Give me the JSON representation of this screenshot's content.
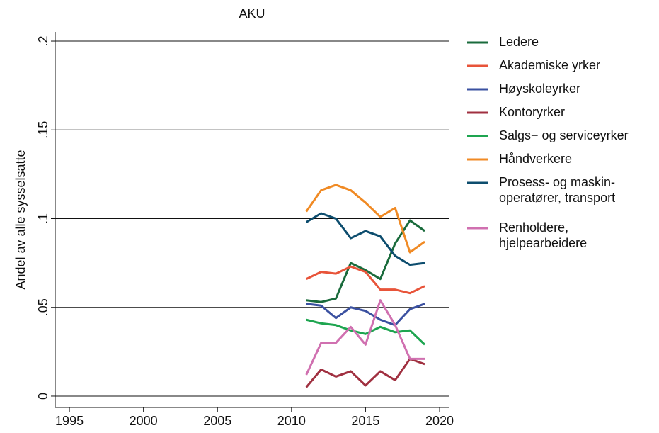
{
  "chart_data": {
    "type": "line",
    "title": "AKU",
    "y_label": "Andel av alle sysselsatte",
    "x": [
      2011,
      2012,
      2013,
      2014,
      2015,
      2016,
      2017,
      2018,
      2019
    ],
    "xlim": [
      1994.04,
      2020.67
    ],
    "xticks": [
      1995,
      2000,
      2005,
      2010,
      2015,
      2020
    ],
    "ylim": [
      -0.0064,
      0.2052
    ],
    "yticks": [
      0,
      {
        "value": 0.05,
        "label": ".05"
      },
      {
        "value": 0.1,
        "label": ".1"
      },
      {
        "value": 0.15,
        "label": ".15"
      },
      {
        "value": 0.2,
        "label": ".2"
      }
    ],
    "grid": true,
    "legend": "right",
    "series": [
      {
        "name": "Ledere",
        "color": "#1a6b3c",
        "values": [
          0.054,
          0.053,
          0.055,
          0.075,
          0.071,
          0.066,
          0.086,
          0.099,
          0.093
        ]
      },
      {
        "name": "Akademiske yrker",
        "color": "#e8543a",
        "values": [
          0.066,
          0.07,
          0.069,
          0.073,
          0.07,
          0.06,
          0.06,
          0.058,
          0.062
        ]
      },
      {
        "name": "Høyskoleyrker",
        "color": "#3a50a0",
        "values": [
          0.052,
          0.051,
          0.044,
          0.05,
          0.048,
          0.043,
          0.04,
          0.049,
          0.052
        ]
      },
      {
        "name": "Kontoryrker",
        "color": "#a03040",
        "values": [
          0.005,
          0.015,
          0.011,
          0.014,
          0.006,
          0.014,
          0.009,
          0.021,
          0.018
        ]
      },
      {
        "name": "Salgs− og serviceyrker",
        "color": "#1ea550",
        "values": [
          0.043,
          0.041,
          0.04,
          0.037,
          0.035,
          0.039,
          0.036,
          0.037,
          0.029
        ]
      },
      {
        "name": "Håndverkere",
        "color": "#f08a24",
        "values": [
          0.104,
          0.116,
          0.119,
          0.116,
          0.109,
          0.101,
          0.106,
          0.081,
          0.087
        ]
      },
      {
        "name": "Prosess- og maskin-\noperatører, transport",
        "color": "#0d4d6e",
        "values": [
          0.098,
          0.103,
          0.1,
          0.089,
          0.093,
          0.09,
          0.079,
          0.074,
          0.075
        ]
      },
      {
        "name": "Renholdere,\nhjelpearbeidere",
        "color": "#d070b0",
        "values": [
          0.012,
          0.03,
          0.03,
          0.039,
          0.029,
          0.054,
          0.04,
          0.021,
          0.021
        ]
      }
    ]
  }
}
